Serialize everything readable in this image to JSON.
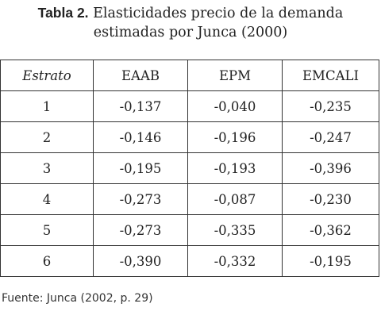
{
  "caption": {
    "label": "Tabla 2.",
    "title_line1": "Elasticidades precio de la demanda",
    "title_line2": "estimadas por Junca (2000)"
  },
  "table": {
    "headers": [
      "Estrato",
      "EAAB",
      "EPM",
      "EMCALI"
    ],
    "rows": [
      [
        "1",
        "-0,137",
        "-0,040",
        "-0,235"
      ],
      [
        "2",
        "-0,146",
        "-0,196",
        "-0,247"
      ],
      [
        "3",
        "-0,195",
        "-0,193",
        "-0,396"
      ],
      [
        "4",
        "-0,273",
        "-0,087",
        "-0,230"
      ],
      [
        "5",
        "-0,273",
        "-0,335",
        "-0,362"
      ],
      [
        "6",
        "-0,390",
        "-0,332",
        "-0,195"
      ]
    ]
  },
  "source": "Fuente: Junca (2002, p. 29)"
}
